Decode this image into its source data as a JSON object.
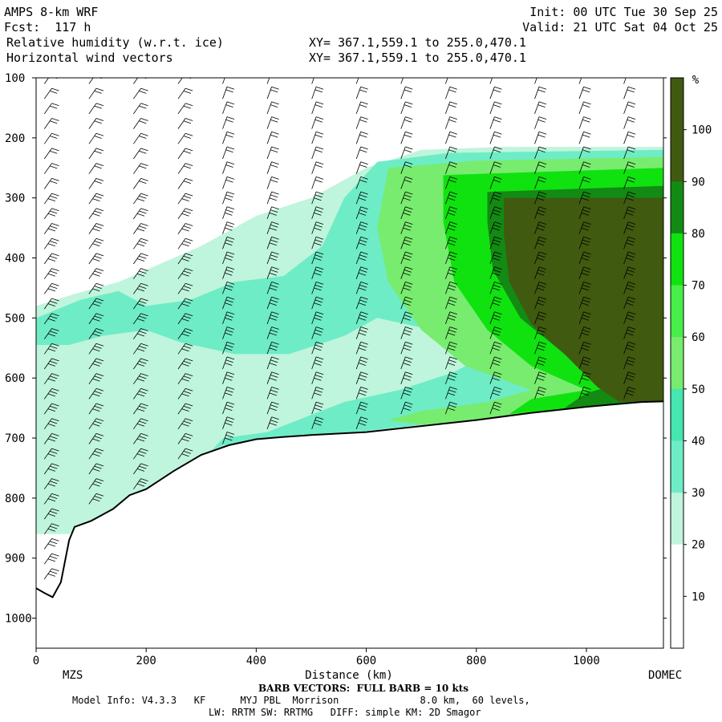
{
  "header": {
    "model": "AMPS 8-km WRF",
    "forecast": "Fcst:  117 h",
    "field1": "Relative humidity (w.r.t. ice)",
    "field2": "Horizontal wind vectors",
    "xy1": "XY= 367.1,559.1 to 255.0,470.1",
    "xy2": "XY= 367.1,559.1 to 255.0,470.1",
    "init": "Init: 00 UTC Tue 30 Sep 25",
    "valid": "Valid: 21 UTC Sat 04 Oct 25"
  },
  "footer": {
    "left_station": "MZS",
    "right_station": "DOMEC",
    "barb_note": "BARB VECTORS:  FULL BARB = 10 kts",
    "model_info": "Model Info: V4.3.3   KF      MYJ PBL  Morrison              8.0 km,  60 levels,",
    "physics": "LW: RRTM SW: RRTMG   DIFF: simple KM: 2D Smagor"
  },
  "colors": {
    "rh_10": "#ffffff",
    "rh_20": "#ffffff",
    "rh_30": "#bff5dc",
    "rh_40": "#6eecc6",
    "rh_50": "#45e6b0",
    "rh_60": "#78ec6e",
    "rh_70": "#48ee48",
    "rh_80": "#10e210",
    "rh_90": "#138a13",
    "rh_100": "#405a10",
    "terrain": "#000000"
  },
  "chart_data": {
    "type": "heatmap",
    "title": "Relative humidity (w.r.t. ice)",
    "xlabel": "Distance (km)",
    "ylabel": "",
    "xlim": [
      0,
      1140
    ],
    "ylim": [
      1050,
      100
    ],
    "x_ticks": [
      0,
      200,
      400,
      600,
      800,
      1000
    ],
    "y_ticks": [
      100,
      200,
      300,
      400,
      500,
      600,
      700,
      800,
      900,
      1000
    ],
    "colorbar": {
      "unit": "%",
      "levels": [
        10,
        20,
        30,
        40,
        50,
        60,
        70,
        80,
        90,
        100
      ]
    },
    "terrain_pressure": [
      {
        "x": 0,
        "p": 950
      },
      {
        "x": 15,
        "p": 958
      },
      {
        "x": 30,
        "p": 965
      },
      {
        "x": 45,
        "p": 940
      },
      {
        "x": 60,
        "p": 870
      },
      {
        "x": 70,
        "p": 848
      },
      {
        "x": 100,
        "p": 838
      },
      {
        "x": 140,
        "p": 818
      },
      {
        "x": 170,
        "p": 795
      },
      {
        "x": 200,
        "p": 785
      },
      {
        "x": 250,
        "p": 755
      },
      {
        "x": 300,
        "p": 728
      },
      {
        "x": 350,
        "p": 712
      },
      {
        "x": 400,
        "p": 702
      },
      {
        "x": 450,
        "p": 698
      },
      {
        "x": 500,
        "p": 695
      },
      {
        "x": 600,
        "p": 690
      },
      {
        "x": 700,
        "p": 680
      },
      {
        "x": 800,
        "p": 670
      },
      {
        "x": 900,
        "p": 658
      },
      {
        "x": 1000,
        "p": 648
      },
      {
        "x": 1100,
        "p": 640
      },
      {
        "x": 1140,
        "p": 639
      }
    ],
    "rh_regions": [
      {
        "level": 30,
        "points": [
          [
            0,
            480
          ],
          [
            70,
            460
          ],
          [
            150,
            440
          ],
          [
            200,
            420
          ],
          [
            300,
            380
          ],
          [
            400,
            330
          ],
          [
            500,
            300
          ],
          [
            600,
            250
          ],
          [
            700,
            220
          ],
          [
            850,
            215
          ],
          [
            1140,
            215
          ],
          [
            1140,
            639
          ],
          [
            1000,
            650
          ],
          [
            800,
            670
          ],
          [
            600,
            690
          ],
          [
            400,
            702
          ],
          [
            300,
            728
          ],
          [
            200,
            785
          ],
          [
            100,
            838
          ],
          [
            60,
            860
          ],
          [
            0,
            860
          ]
        ]
      },
      {
        "level": 40,
        "points": [
          [
            0,
            500
          ],
          [
            80,
            470
          ],
          [
            150,
            455
          ],
          [
            200,
            480
          ],
          [
            280,
            470
          ],
          [
            360,
            440
          ],
          [
            450,
            430
          ],
          [
            520,
            380
          ],
          [
            560,
            300
          ],
          [
            620,
            240
          ],
          [
            750,
            225
          ],
          [
            1140,
            220
          ],
          [
            1140,
            639
          ],
          [
            1000,
            648
          ],
          [
            800,
            668
          ],
          [
            600,
            688
          ],
          [
            420,
            700
          ],
          [
            340,
            712
          ],
          [
            320,
            720
          ],
          [
            340,
            700
          ],
          [
            420,
            690
          ],
          [
            560,
            640
          ],
          [
            660,
            620
          ],
          [
            760,
            590
          ],
          [
            820,
            560
          ],
          [
            720,
            520
          ],
          [
            620,
            500
          ],
          [
            560,
            530
          ],
          [
            460,
            560
          ],
          [
            360,
            560
          ],
          [
            260,
            540
          ],
          [
            200,
            520
          ],
          [
            120,
            530
          ],
          [
            60,
            545
          ],
          [
            0,
            545
          ]
        ]
      },
      {
        "level": 60,
        "points": [
          [
            640,
            250
          ],
          [
            800,
            238
          ],
          [
            1140,
            232
          ],
          [
            1140,
            639
          ],
          [
            1000,
            648
          ],
          [
            820,
            668
          ],
          [
            700,
            678
          ],
          [
            640,
            670
          ],
          [
            700,
            655
          ],
          [
            820,
            640
          ],
          [
            900,
            620
          ],
          [
            780,
            580
          ],
          [
            700,
            520
          ],
          [
            640,
            440
          ],
          [
            620,
            350
          ]
        ]
      },
      {
        "level": 80,
        "points": [
          [
            740,
            262
          ],
          [
            1140,
            250
          ],
          [
            1140,
            639
          ],
          [
            1000,
            648
          ],
          [
            860,
            660
          ],
          [
            900,
            635
          ],
          [
            1000,
            620
          ],
          [
            900,
            580
          ],
          [
            820,
            520
          ],
          [
            760,
            440
          ],
          [
            740,
            340
          ]
        ]
      },
      {
        "level": 90,
        "points": [
          [
            820,
            290
          ],
          [
            1140,
            280
          ],
          [
            1140,
            639
          ],
          [
            1020,
            645
          ],
          [
            960,
            650
          ],
          [
            1000,
            625
          ],
          [
            1060,
            610
          ],
          [
            960,
            560
          ],
          [
            880,
            500
          ],
          [
            830,
            420
          ],
          [
            820,
            340
          ]
        ]
      },
      {
        "level": 100,
        "points": [
          [
            850,
            300
          ],
          [
            1140,
            300
          ],
          [
            1140,
            638
          ],
          [
            1060,
            640
          ],
          [
            1020,
            615
          ],
          [
            960,
            560
          ],
          [
            900,
            510
          ],
          [
            860,
            440
          ],
          [
            850,
            360
          ]
        ]
      }
    ]
  }
}
